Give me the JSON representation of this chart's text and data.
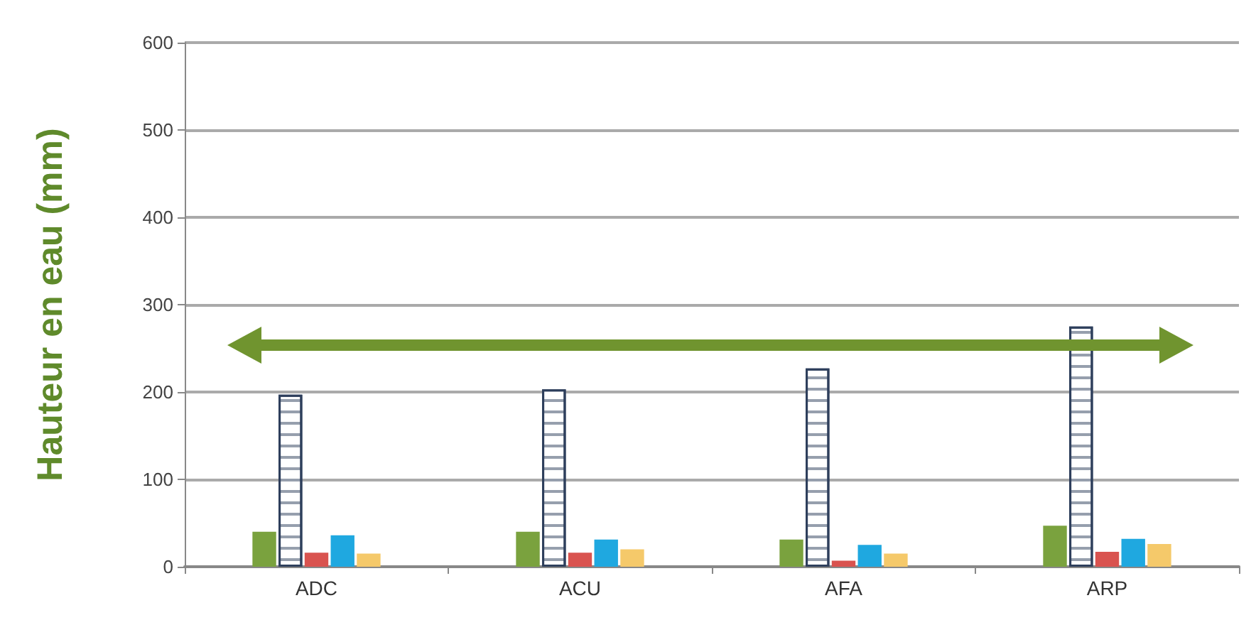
{
  "chart_data": {
    "type": "bar",
    "ylabel": "Hauteur en eau (mm)",
    "categories": [
      "ADC",
      "ACU",
      "AFA",
      "ARP"
    ],
    "series": [
      {
        "color": "#7aa23e",
        "values": [
          40,
          40,
          31,
          47
        ]
      },
      {
        "color": "#ffffff",
        "values": [
          197,
          203,
          227,
          275
        ]
      },
      {
        "color": "#d9534f",
        "values": [
          16,
          16,
          7,
          17
        ]
      },
      {
        "color": "#1fa8e0",
        "values": [
          36,
          31,
          25,
          32
        ]
      },
      {
        "color": "#f5c96a",
        "values": [
          15,
          20,
          15,
          26
        ]
      }
    ],
    "ylim": [
      0,
      600
    ],
    "yticks": [
      0,
      100,
      200,
      300,
      400,
      500,
      600
    ],
    "grid": "y"
  }
}
